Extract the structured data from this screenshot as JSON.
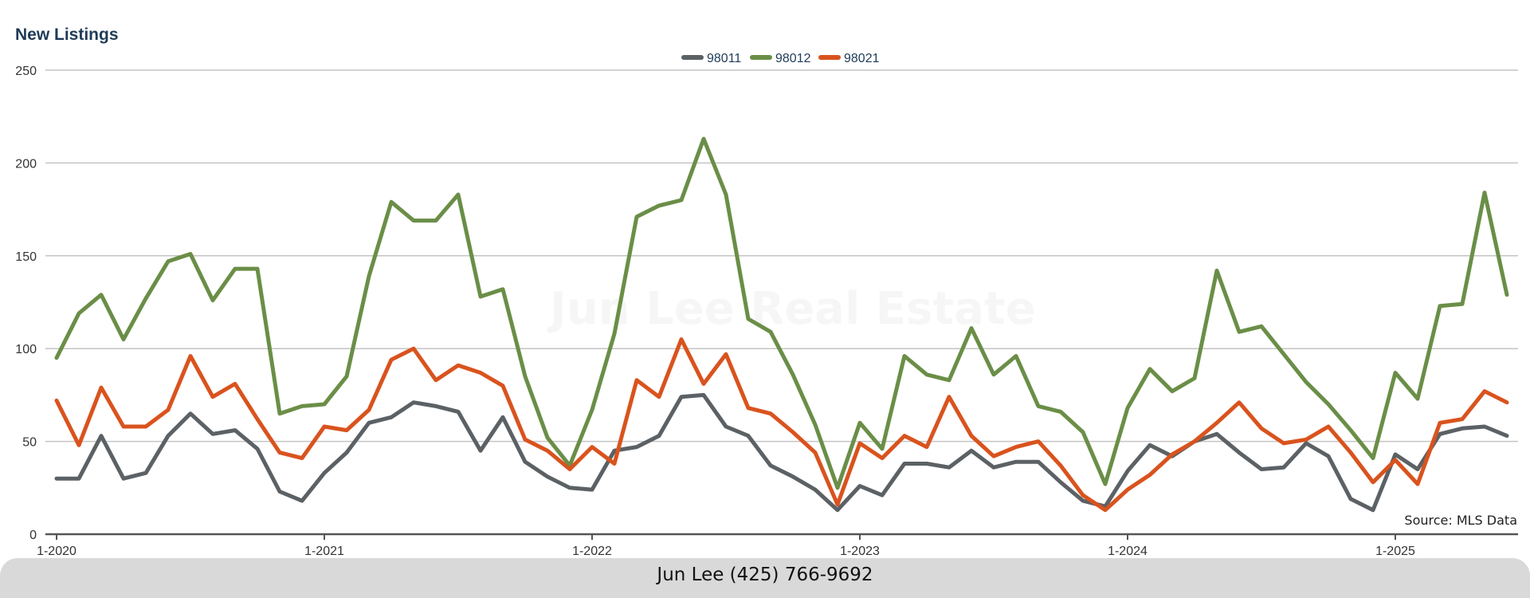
{
  "chart_data": {
    "type": "line",
    "title": "New Listings",
    "xlabel": "",
    "ylabel": "",
    "ylim": [
      0,
      250
    ],
    "yticks": [
      0,
      50,
      100,
      150,
      200,
      250
    ],
    "x_start": "1-2020",
    "x_tick_labels": [
      "1-2020",
      "1-2021",
      "1-2022",
      "1-2023",
      "1-2024",
      "1-2025"
    ],
    "grid": true,
    "legend_position": "top-center",
    "series": [
      {
        "name": "98011",
        "color": "#5b6164",
        "values": [
          30,
          30,
          53,
          30,
          33,
          53,
          65,
          54,
          56,
          46,
          23,
          18,
          33,
          44,
          60,
          63,
          71,
          69,
          66,
          45,
          63,
          39,
          31,
          25,
          24,
          45,
          47,
          53,
          74,
          75,
          58,
          53,
          37,
          31,
          24,
          13,
          26,
          21,
          38,
          38,
          36,
          45,
          36,
          39,
          39,
          28,
          18,
          15,
          34,
          48,
          42,
          50,
          54,
          44,
          35,
          36,
          49,
          42,
          19,
          13,
          43,
          35,
          54,
          57,
          58,
          53
        ]
      },
      {
        "name": "98012",
        "color": "#6a8e47",
        "values": [
          95,
          119,
          129,
          105,
          127,
          147,
          151,
          126,
          143,
          143,
          65,
          69,
          70,
          85,
          139,
          179,
          169,
          169,
          183,
          128,
          132,
          85,
          52,
          37,
          67,
          108,
          171,
          177,
          180,
          213,
          183,
          116,
          109,
          86,
          59,
          25,
          60,
          46,
          96,
          86,
          83,
          111,
          86,
          96,
          69,
          66,
          55,
          27,
          68,
          89,
          77,
          84,
          142,
          109,
          112,
          97,
          82,
          70,
          56,
          41,
          87,
          73,
          123,
          124,
          184,
          129
        ]
      },
      {
        "name": "98021",
        "color": "#d9531e",
        "values": [
          72,
          48,
          79,
          58,
          58,
          67,
          96,
          74,
          81,
          62,
          44,
          41,
          58,
          56,
          67,
          94,
          100,
          83,
          91,
          87,
          80,
          51,
          45,
          35,
          47,
          38,
          83,
          74,
          105,
          81,
          97,
          68,
          65,
          55,
          44,
          16,
          49,
          41,
          53,
          47,
          74,
          53,
          42,
          47,
          50,
          37,
          21,
          13,
          24,
          32,
          43,
          50,
          60,
          71,
          57,
          49,
          51,
          58,
          44,
          28,
          40,
          27,
          60,
          62,
          77,
          71
        ]
      }
    ]
  },
  "source_note": "Source: MLS Data",
  "footer": "Jun Lee (425) 766-9692",
  "watermark": "Jun Lee Real Estate"
}
